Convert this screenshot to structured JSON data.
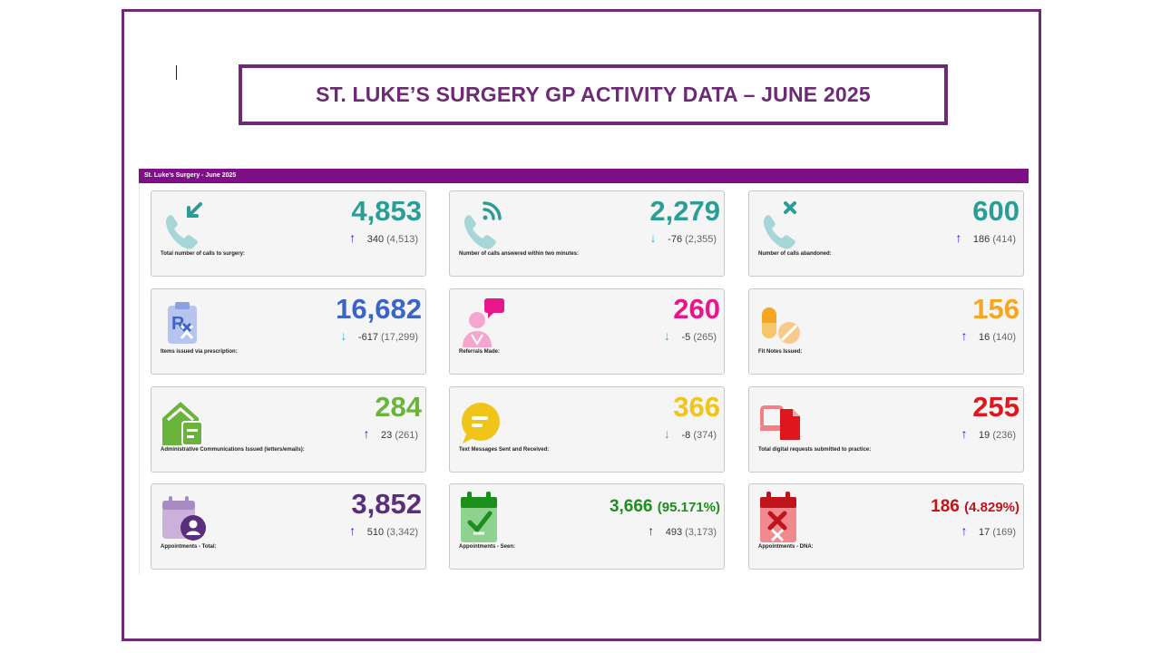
{
  "slide_title": "ST. LUKE’S SURGERY GP ACTIVITY DATA – JUNE 2025",
  "dashboard_header": "St. Luke’s Surgery - June 2025",
  "colors": {
    "frame": "#6d2a75",
    "banner": "#7e0f86",
    "teal": "#2a9d96",
    "blue": "#3c64c8",
    "pink": "#e8168a",
    "orange": "#f5a623",
    "green": "#6bb43c",
    "yellow": "#f0c419",
    "red": "#e0161e",
    "purple": "#5b2d7d",
    "dark_green": "#1b8f1b",
    "dark_red": "#c0141c",
    "arrow_up": "#1a1adc",
    "arrow_down": "#2ab7d9"
  },
  "cards": [
    {
      "icon": "phone-incoming-icon",
      "value": "4,853",
      "value_pct": "",
      "arrow": "↑",
      "direction": "up",
      "change": "340",
      "previous": "(4,513)",
      "label": "Total number of calls to surgery:",
      "color": "#2a9d96"
    },
    {
      "icon": "phone-answered-icon",
      "value": "2,279",
      "value_pct": "",
      "arrow": "↓",
      "direction": "down",
      "change": "-76",
      "previous": "(2,355)",
      "label": "Number of calls answered within two minutes:",
      "color": "#2a9d96"
    },
    {
      "icon": "phone-abandoned-icon",
      "value": "600",
      "value_pct": "",
      "arrow": "↑",
      "direction": "up",
      "change": "186",
      "previous": "(414)",
      "label": "Number of calls abandoned:",
      "color": "#2a9d96"
    },
    {
      "icon": "prescription-icon",
      "value": "16,682",
      "value_pct": "",
      "arrow": "↓",
      "direction": "down",
      "change": "-617",
      "previous": "(17,299)",
      "label": "Items issued via prescription:",
      "color": "#3c64c8"
    },
    {
      "icon": "referral-icon",
      "value": "260",
      "value_pct": "",
      "arrow": "↓",
      "direction": "down",
      "change": "-5",
      "previous": "(265)",
      "label": "Referrals Made:",
      "color": "#e8168a"
    },
    {
      "icon": "pills-icon",
      "value": "156",
      "value_pct": "",
      "arrow": "↑",
      "direction": "up",
      "change": "16",
      "previous": "(140)",
      "label": "Fit Notes Issued:",
      "color": "#f5a623"
    },
    {
      "icon": "mail-house-icon",
      "value": "284",
      "value_pct": "",
      "arrow": "↑",
      "direction": "up",
      "change": "23",
      "previous": "(261)",
      "label": "Administrative Communications Issued (letters/emails):",
      "color": "#6bb43c"
    },
    {
      "icon": "chat-bubble-icon",
      "value": "366",
      "value_pct": "",
      "arrow": "↓",
      "direction": "down",
      "change": "-8",
      "previous": "(374)",
      "label": "Text Messages Sent and Received:",
      "color": "#f0c419"
    },
    {
      "icon": "digital-request-icon",
      "value": "255",
      "value_pct": "",
      "arrow": "↑",
      "direction": "up",
      "change": "19",
      "previous": "(236)",
      "label": "Total digital requests submitted to practice:",
      "color": "#e0161e"
    },
    {
      "icon": "calendar-user-icon",
      "value": "3,852",
      "value_pct": "",
      "arrow": "↑",
      "direction": "up",
      "change": "510",
      "previous": "(3,342)",
      "label": "Appointments - Total:",
      "color": "#5b2d7d"
    },
    {
      "icon": "calendar-check-icon",
      "value": "3,666",
      "value_pct": "(95.171%)",
      "arrow": "↑",
      "direction": "up",
      "change": "493",
      "previous": "(3,173)",
      "label": "Appointments - Seen:",
      "color": "#1b8f1b"
    },
    {
      "icon": "calendar-cross-icon",
      "value": "186",
      "value_pct": "(4.829%)",
      "arrow": "↑",
      "direction": "up",
      "change": "17",
      "previous": "(169)",
      "label": "Appointments - DNA:",
      "color": "#c0141c"
    }
  ]
}
